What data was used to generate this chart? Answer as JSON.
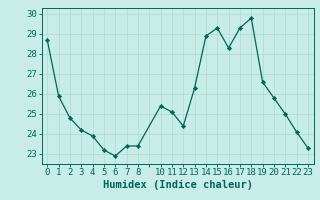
{
  "x": [
    0,
    1,
    2,
    3,
    4,
    5,
    6,
    7,
    8,
    10,
    11,
    12,
    13,
    14,
    15,
    16,
    17,
    18,
    19,
    20,
    21,
    22,
    23
  ],
  "y": [
    28.7,
    25.9,
    24.8,
    24.2,
    23.9,
    23.2,
    22.9,
    23.4,
    23.4,
    25.4,
    25.1,
    24.4,
    26.3,
    28.9,
    29.3,
    28.3,
    29.3,
    29.8,
    26.6,
    25.8,
    25.0,
    24.1,
    23.3
  ],
  "bg_color": "#c8ece8",
  "grid_color": "#b0d8d0",
  "line_color": "#006655",
  "marker_color": "#006655",
  "xlabel": "Humidex (Indice chaleur)",
  "ylim": [
    22.5,
    30.3
  ],
  "xlim": [
    -0.5,
    23.5
  ],
  "yticks": [
    23,
    24,
    25,
    26,
    27,
    28,
    29,
    30
  ],
  "xtick_labels": [
    "0",
    "1",
    "2",
    "3",
    "4",
    "5",
    "6",
    "7",
    "8",
    "",
    "10",
    "11",
    "12",
    "13",
    "14",
    "15",
    "16",
    "17",
    "18",
    "19",
    "20",
    "21",
    "22",
    "23"
  ],
  "xlabel_fontsize": 7.5,
  "tick_fontsize": 6.5
}
